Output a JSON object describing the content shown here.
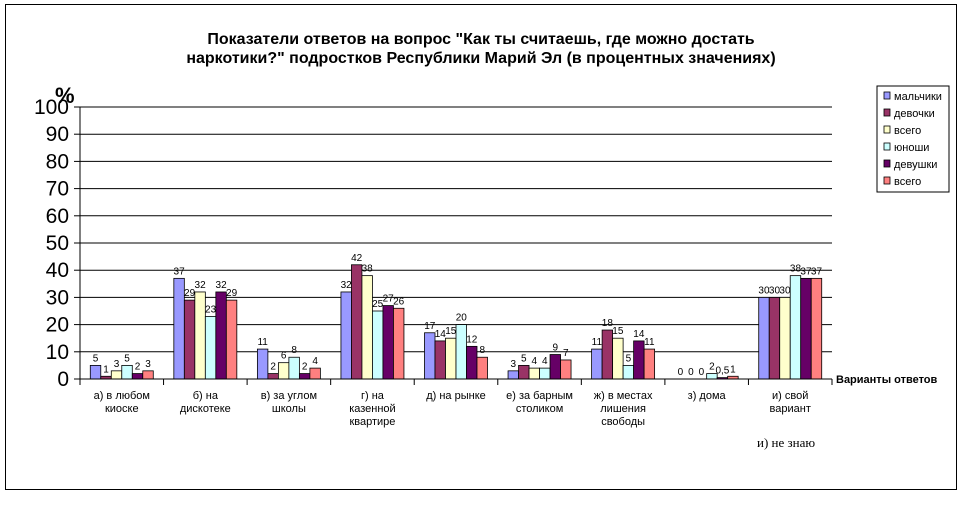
{
  "chart_data": {
    "type": "bar",
    "title_lines": [
      "Показатели ответов на вопрос \"Как ты считаешь, где можно достать",
      "наркотики?\" подростков Республики Марий Эл (в процентных значениях)"
    ],
    "ylabel": "%",
    "xlabel": "Варианты ответов",
    "ylim": [
      0,
      100
    ],
    "yticks": [
      0,
      10,
      20,
      30,
      40,
      50,
      60,
      70,
      80,
      90,
      100
    ],
    "grid": true,
    "legend_position": "right",
    "note": "и) не знаю",
    "categories": [
      [
        "а) в любом",
        "киоске"
      ],
      [
        "б) на",
        "дискотеке"
      ],
      [
        "в) за углом",
        "школы"
      ],
      [
        "г) на",
        "казенной",
        "квартире"
      ],
      [
        "д) на рынке"
      ],
      [
        "е) за барным",
        "столиком"
      ],
      [
        "ж) в местах",
        "лишения",
        "свободы"
      ],
      [
        "з) дома"
      ],
      [
        "и) свой",
        "вариант"
      ]
    ],
    "series": [
      {
        "name": "мальчики",
        "color": "#9999ff",
        "values": [
          5,
          37,
          11,
          32,
          17,
          3,
          11,
          0,
          30
        ],
        "labels": [
          "5",
          "37",
          "11",
          "32",
          "17",
          "3",
          "11",
          "0",
          "30"
        ]
      },
      {
        "name": "девочки",
        "color": "#993366",
        "values": [
          1,
          29,
          2,
          42,
          14,
          5,
          18,
          0,
          30
        ],
        "labels": [
          "1",
          "29",
          "2",
          "42",
          "14",
          "5",
          "18",
          "0",
          "30"
        ]
      },
      {
        "name": "всего",
        "color": "#ffffcc",
        "values": [
          3,
          32,
          6,
          38,
          15,
          4,
          15,
          0,
          30
        ],
        "labels": [
          "3",
          "32",
          "6",
          "38",
          "15",
          "4",
          "15",
          "0",
          "30"
        ]
      },
      {
        "name": "юноши",
        "color": "#ccffff",
        "values": [
          5,
          23,
          8,
          25,
          20,
          4,
          5,
          2,
          38
        ],
        "labels": [
          "5",
          "23",
          "8",
          "25",
          "20",
          "4",
          "5",
          "2",
          "38"
        ]
      },
      {
        "name": "девушки",
        "color": "#660066",
        "values": [
          2,
          32,
          2,
          27,
          12,
          9,
          14,
          0.5,
          37
        ],
        "labels": [
          "2",
          "32",
          "2",
          "27",
          "12",
          "9",
          "14",
          "0,5",
          "37"
        ]
      },
      {
        "name": "всего",
        "color": "#ff8080",
        "values": [
          3,
          29,
          4,
          26,
          8,
          7,
          11,
          1,
          37
        ],
        "labels": [
          "3",
          "29",
          "4",
          "26",
          "8",
          "7",
          "11",
          "1",
          "37"
        ]
      }
    ]
  }
}
